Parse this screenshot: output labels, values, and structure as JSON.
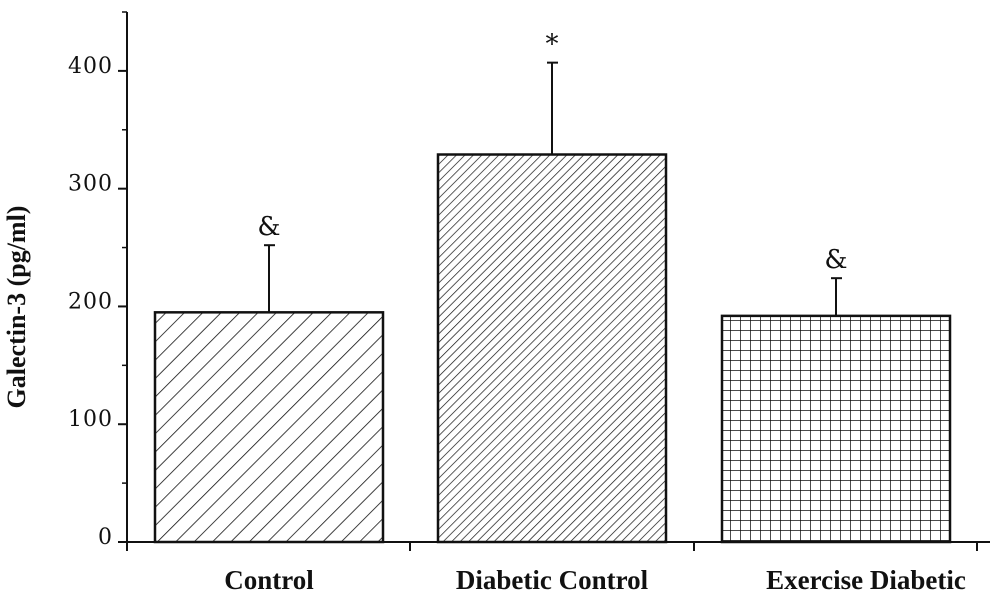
{
  "chart_data": {
    "type": "bar",
    "title": "",
    "xlabel": "",
    "ylabel": "Galectin-3 (pg/ml)",
    "ylim": [
      0,
      450
    ],
    "yticks": [
      0,
      100,
      200,
      300,
      400
    ],
    "ytick_labels": [
      "0",
      "100",
      "200",
      "300",
      "400"
    ],
    "categories": [
      "Control",
      "Diabetic Control",
      "Exercise Diabetic"
    ],
    "values": [
      195,
      329,
      192
    ],
    "errors": [
      57,
      78,
      32
    ],
    "annotations": [
      "&",
      "*",
      "&"
    ],
    "patterns": [
      "diagonal-wide",
      "diagonal-dense",
      "grid"
    ],
    "grid": false,
    "legend": false,
    "bar_fill_color": "#ffffff",
    "stroke_color": "#111111"
  }
}
